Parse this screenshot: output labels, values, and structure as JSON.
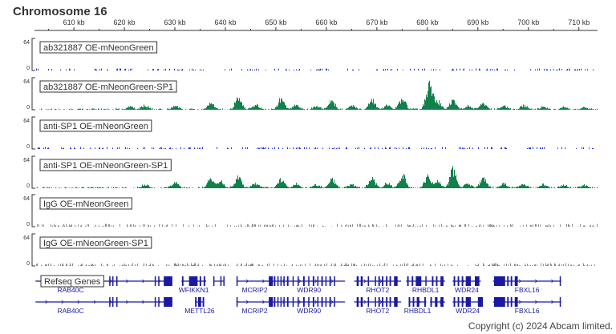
{
  "title": "Chromosome 16",
  "copyright": "Copyright (c) 2024 Abcam limited.",
  "colors": {
    "blue_signal": "#2233dd",
    "green_signal": "#11804a",
    "gray_signal": "#888888",
    "gene": "#1a1aa0"
  },
  "chart_data": {
    "type": "area",
    "title": "Chromosome 16",
    "x_unit": "kb",
    "xlim": [
      602.2,
      713.7
    ],
    "x_ticks": [
      610,
      620,
      630,
      640,
      650,
      660,
      670,
      680,
      690,
      700,
      710
    ],
    "x_tick_labels": [
      "610 kb",
      "620 kb",
      "630 kb",
      "640 kb",
      "650 kb",
      "660 kb",
      "670 kb",
      "680 kb",
      "690 kb",
      "700 kb",
      "710 kb"
    ],
    "ylim": [
      0,
      64
    ],
    "y_tick_labels": [
      "64",
      "0"
    ],
    "tracks": [
      {
        "name": "ab321887 OE-mNeonGreen",
        "color": "#2233dd",
        "style": "sparse",
        "peaks": []
      },
      {
        "name": "ab321887 OE-mNeonGreen-SP1",
        "color": "#11804a",
        "style": "peaks",
        "peaks": [
          [
            621,
            8
          ],
          [
            624,
            10
          ],
          [
            630,
            8
          ],
          [
            637,
            16
          ],
          [
            642.5,
            26
          ],
          [
            646,
            12
          ],
          [
            651,
            24
          ],
          [
            654,
            10
          ],
          [
            658,
            8
          ],
          [
            661,
            20
          ],
          [
            665,
            9
          ],
          [
            669,
            22
          ],
          [
            672,
            10
          ],
          [
            675,
            26
          ],
          [
            680.3,
            60
          ],
          [
            682,
            20
          ],
          [
            685,
            20
          ],
          [
            688,
            9
          ],
          [
            691,
            15
          ],
          [
            695,
            8
          ],
          [
            699,
            9
          ],
          [
            703,
            6
          ],
          [
            707,
            6
          ],
          [
            711,
            5
          ]
        ]
      },
      {
        "name": "anti-SP1 OE-mNeonGreen",
        "color": "#2233dd",
        "style": "sparse",
        "peaks": []
      },
      {
        "name": "anti-SP1 OE-mNeonGreen-SP1",
        "color": "#11804a",
        "style": "peaks",
        "peaks": [
          [
            624,
            9
          ],
          [
            630,
            14
          ],
          [
            637,
            20
          ],
          [
            639,
            14
          ],
          [
            642.5,
            25
          ],
          [
            646,
            12
          ],
          [
            651,
            22
          ],
          [
            654,
            10
          ],
          [
            658,
            8
          ],
          [
            661,
            20
          ],
          [
            665,
            8
          ],
          [
            669,
            22
          ],
          [
            672,
            12
          ],
          [
            675,
            32
          ],
          [
            680,
            28
          ],
          [
            682,
            16
          ],
          [
            685,
            42
          ],
          [
            688,
            10
          ],
          [
            691,
            26
          ],
          [
            695,
            10
          ],
          [
            699,
            10
          ],
          [
            703,
            8
          ],
          [
            707,
            6
          ],
          [
            711,
            6
          ]
        ]
      },
      {
        "name": "IgG OE-mNeonGreen",
        "color": "#888888",
        "style": "noise",
        "peaks": []
      },
      {
        "name": "IgG OE-mNeonGreen-SP1",
        "color": "#888888",
        "style": "noise",
        "peaks": []
      }
    ],
    "genes_track": {
      "name": "Refseq Genes",
      "rows": [
        [
          {
            "name": "RAB40C",
            "start": 602.4,
            "end": 629.5,
            "exons": [
              [
                617.0,
                617.2
              ],
              [
                617.6,
                617.8
              ],
              [
                618.4,
                618.6
              ],
              [
                626.0,
                626.2
              ],
              [
                626.7,
                626.9
              ],
              [
                627.8,
                629.5
              ]
            ]
          },
          {
            "name": "WFIKKN1",
            "start": 631.3,
            "end": 636.2,
            "exons": [
              [
                631.4,
                631.7
              ],
              [
                632.8,
                634.5
              ],
              [
                634.9,
                635.2
              ],
              [
                635.7,
                636.0
              ]
            ]
          },
          {
            "name": "",
            "start": 637.6,
            "end": 639.8,
            "exons": [
              [
                637.6,
                637.8
              ],
              [
                639.0,
                639.2
              ],
              [
                639.6,
                639.8
              ]
            ]
          },
          {
            "name": "MCRIP2",
            "start": 642.2,
            "end": 649.4,
            "exons": [
              [
                642.2,
                642.4
              ],
              [
                648.6,
                649.4
              ]
            ]
          },
          {
            "name": "WDR90",
            "start": 649.4,
            "end": 663.7,
            "exons": [
              [
                649.6,
                649.9
              ],
              [
                650.3,
                650.5
              ],
              [
                650.9,
                651.1
              ],
              [
                651.5,
                651.7
              ],
              [
                652.2,
                652.5
              ],
              [
                653.3,
                653.5
              ],
              [
                654.3,
                654.5
              ],
              [
                655.4,
                655.7
              ],
              [
                656.4,
                656.6
              ],
              [
                657.3,
                657.6
              ],
              [
                658.2,
                658.4
              ],
              [
                659.0,
                659.3
              ],
              [
                659.8,
                660.0
              ],
              [
                660.6,
                660.9
              ],
              [
                661.5,
                661.7
              ]
            ]
          },
          {
            "name": "RHOT2",
            "start": 665.5,
            "end": 674.8,
            "exons": [
              [
                666.0,
                666.4
              ],
              [
                666.8,
                667.2
              ],
              [
                668.2,
                668.4
              ],
              [
                669.6,
                669.8
              ],
              [
                670.3,
                670.6
              ],
              [
                671.0,
                671.3
              ],
              [
                671.8,
                672.1
              ],
              [
                672.5,
                672.8
              ],
              [
                673.4,
                674.1
              ]
            ]
          },
          {
            "name": "RHBDL1",
            "start": 675.8,
            "end": 683.5,
            "exons": [
              [
                676.0,
                676.3
              ],
              [
                676.9,
                677.2
              ],
              [
                677.7,
                678.8
              ],
              [
                679.6,
                679.8
              ],
              [
                680.9,
                681.2
              ],
              [
                681.7,
                682.0
              ],
              [
                682.6,
                683.2
              ]
            ]
          },
          {
            "name": "WDR24",
            "start": 685.0,
            "end": 690.6,
            "exons": [
              [
                685.2,
                685.5
              ],
              [
                686.0,
                686.3
              ],
              [
                686.8,
                687.1
              ],
              [
                687.6,
                688.6
              ],
              [
                689.4,
                690.3
              ]
            ]
          },
          {
            "name": "FBXL16",
            "start": 693.0,
            "end": 706.5,
            "exons": [
              [
                693.2,
                695.4
              ],
              [
                695.8,
                696.1
              ],
              [
                696.5,
                696.8
              ],
              [
                697.3,
                697.9
              ],
              [
                706.2,
                706.4
              ]
            ]
          }
        ],
        [
          {
            "name": "RAB40C",
            "start": 602.4,
            "end": 629.5,
            "exons": [
              [
                617.0,
                617.2
              ],
              [
                617.6,
                617.8
              ],
              [
                618.4,
                618.6
              ],
              [
                626.0,
                626.2
              ],
              [
                626.7,
                626.9
              ],
              [
                627.8,
                629.5
              ]
            ]
          },
          {
            "name": "METTL26",
            "start": 634.0,
            "end": 635.8,
            "exons": [
              [
                634.0,
                634.3
              ],
              [
                634.6,
                635.2
              ],
              [
                635.5,
                635.8
              ]
            ]
          },
          {
            "name": "MCRIP2",
            "start": 642.2,
            "end": 649.4,
            "exons": [
              [
                642.2,
                642.4
              ],
              [
                648.6,
                649.4
              ]
            ]
          },
          {
            "name": "WDR90",
            "start": 649.4,
            "end": 663.7,
            "exons": [
              [
                649.6,
                649.9
              ],
              [
                650.3,
                650.5
              ],
              [
                650.9,
                651.1
              ],
              [
                651.5,
                651.7
              ],
              [
                652.2,
                652.5
              ],
              [
                653.3,
                653.5
              ],
              [
                654.3,
                654.5
              ],
              [
                655.4,
                655.7
              ],
              [
                656.4,
                656.6
              ],
              [
                657.3,
                657.6
              ],
              [
                658.2,
                658.4
              ],
              [
                659.0,
                659.3
              ],
              [
                659.8,
                660.0
              ],
              [
                660.6,
                660.9
              ],
              [
                661.5,
                661.7
              ]
            ]
          },
          {
            "name": "RHOT2",
            "start": 665.5,
            "end": 674.8,
            "exons": [
              [
                666.0,
                666.4
              ],
              [
                666.8,
                667.2
              ],
              [
                668.2,
                668.4
              ],
              [
                669.6,
                669.8
              ],
              [
                670.3,
                670.6
              ],
              [
                671.0,
                671.3
              ],
              [
                671.8,
                672.1
              ],
              [
                672.5,
                672.8
              ],
              [
                673.4,
                674.1
              ]
            ]
          },
          {
            "name": "RHBDL1",
            "start": 676.3,
            "end": 679.8,
            "exons": [
              [
                676.3,
                676.6
              ],
              [
                677.1,
                677.4
              ],
              [
                677.9,
                678.4
              ],
              [
                679.4,
                679.7
              ]
            ]
          },
          {
            "name": "",
            "start": 680.5,
            "end": 683.5,
            "exons": [
              [
                680.6,
                680.9
              ],
              [
                681.5,
                682.0
              ],
              [
                682.6,
                683.2
              ]
            ]
          },
          {
            "name": "WDR24",
            "start": 685.0,
            "end": 691.0,
            "exons": [
              [
                685.2,
                685.5
              ],
              [
                686.0,
                686.3
              ],
              [
                686.8,
                687.1
              ],
              [
                687.6,
                688.6
              ],
              [
                690.0,
                691.0
              ]
            ]
          },
          {
            "name": "FBXL16",
            "start": 693.0,
            "end": 706.5,
            "exons": [
              [
                693.2,
                695.4
              ],
              [
                695.8,
                696.1
              ],
              [
                696.5,
                696.8
              ],
              [
                697.3,
                697.9
              ],
              [
                706.2,
                706.4
              ]
            ]
          }
        ]
      ]
    }
  }
}
